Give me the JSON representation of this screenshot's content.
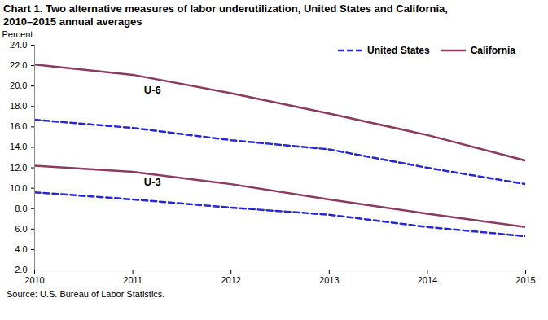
{
  "chart_data": {
    "type": "line",
    "title": "Chart 1. Two alternative measures of labor underutilization, United States and California, 2010–2015 annual averages",
    "y_label": "Percent",
    "source": "Source: U.S. Bureau of Labor Statistics.",
    "x": [
      2010,
      2011,
      2012,
      2013,
      2014,
      2015
    ],
    "series": [
      {
        "name": "United States",
        "color": "#2626d9",
        "line_style": "dashed",
        "values": [
          16.7,
          15.9,
          14.7,
          13.8,
          12.0,
          10.4
        ]
      },
      {
        "name": "California",
        "color": "#8b3a62",
        "line_style": "solid",
        "values": [
          22.1,
          21.1,
          19.3,
          17.3,
          15.2,
          12.7
        ]
      },
      {
        "name": "California",
        "color": "#8b3a62",
        "line_style": "solid",
        "values": [
          12.2,
          11.6,
          10.4,
          8.9,
          7.5,
          6.2
        ]
      },
      {
        "name": "United States",
        "color": "#2626d9",
        "line_style": "dashed",
        "values": [
          9.6,
          8.9,
          8.1,
          7.4,
          6.2,
          5.3
        ]
      }
    ],
    "annotations": [
      {
        "text": "U-6",
        "x": 2011.2,
        "y": 19.6
      },
      {
        "text": "U-3",
        "x": 2011.2,
        "y": 10.6
      }
    ],
    "xlim": [
      2010,
      2015
    ],
    "xticks": [
      2010,
      2011,
      2012,
      2013,
      2014,
      2015
    ],
    "ylim": [
      2,
      24
    ],
    "yticks": [
      {
        "value": 2,
        "label": "2.0"
      },
      {
        "value": 4,
        "label": "4.0"
      },
      {
        "value": 6,
        "label": "6.0"
      },
      {
        "value": 8,
        "label": "8.0"
      },
      {
        "value": 10,
        "label": "10.0"
      },
      {
        "value": 12,
        "label": "12.0"
      },
      {
        "value": 14,
        "label": "14.0"
      },
      {
        "value": 16,
        "label": "16.0"
      },
      {
        "value": 18,
        "label": "18.0"
      },
      {
        "value": 20,
        "label": "20.0"
      },
      {
        "value": 22,
        "label": "22.0"
      },
      {
        "value": 24,
        "label": "24.0"
      }
    ],
    "grid": false,
    "legend": "top-right"
  }
}
